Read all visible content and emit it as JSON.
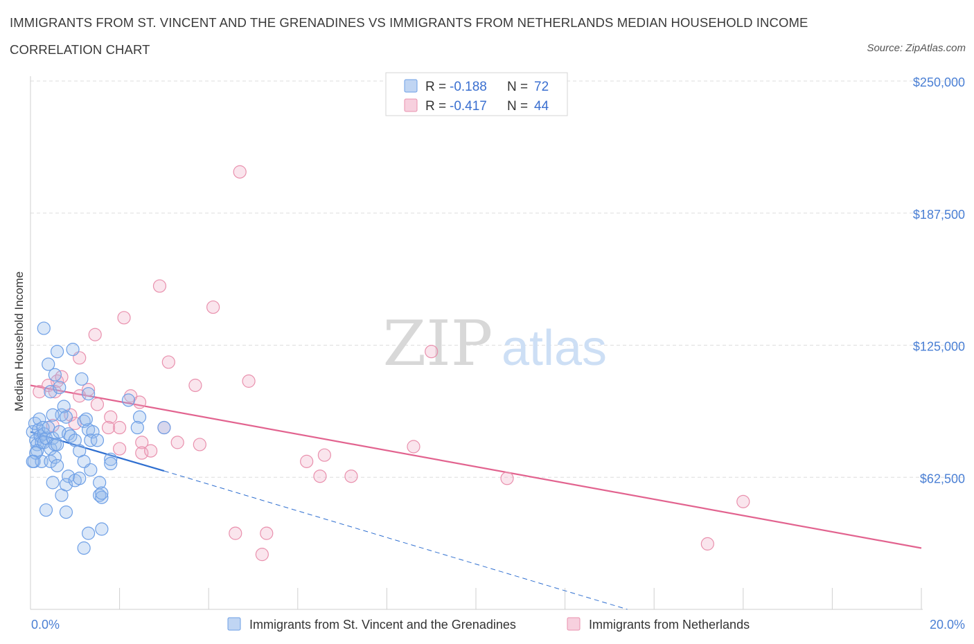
{
  "title_line1": "IMMIGRANTS FROM ST. VINCENT AND THE GRENADINES VS IMMIGRANTS FROM NETHERLANDS MEDIAN HOUSEHOLD INCOME",
  "title_line2": "CORRELATION CHART",
  "source": "Source: ZipAtlas.com",
  "watermark": {
    "zip": "ZIP",
    "atlas": "atlas"
  },
  "colors": {
    "blue": "#6d9fe6",
    "blue_fill": "rgba(150,185,235,0.35)",
    "blue_line": "#2f6fd0",
    "pink": "#e990ad",
    "pink_fill": "rgba(240,170,195,0.30)",
    "pink_line": "#e2638f",
    "grid": "#dddddd",
    "tick_text": "#4a7fd4"
  },
  "legend": {
    "r_label": "R =",
    "n_label": "N =",
    "rows": [
      {
        "r": "-0.188",
        "n": "72"
      },
      {
        "r": "-0.417",
        "n": "44"
      }
    ]
  },
  "chart_data": {
    "type": "scatter",
    "ylabel": "Median Household Income",
    "x_tick_labels": [
      "0.0%",
      "20.0%"
    ],
    "y_tick_labels": [
      "$62,500",
      "$125,000",
      "$187,500",
      "$250,000"
    ],
    "xlim": [
      0,
      20
    ],
    "ylim": [
      0,
      250000
    ],
    "y_ticks": [
      62500,
      125000,
      187500,
      250000
    ],
    "grid": true,
    "legend_position": "top-center",
    "series": [
      {
        "name": "Immigrants from St. Vincent and the Grenadines",
        "color": "#6d9fe6",
        "trend": {
          "x0": 0,
          "y0": 84000,
          "x1": 3.0,
          "y1": 65500,
          "dash_to_x": 13.4,
          "dash_to_y": 0
        },
        "points": [
          [
            0.05,
            84000
          ],
          [
            0.1,
            88000
          ],
          [
            0.12,
            80000
          ],
          [
            0.15,
            78000
          ],
          [
            0.18,
            85000
          ],
          [
            0.2,
            90000
          ],
          [
            0.22,
            82000
          ],
          [
            0.25,
            79000
          ],
          [
            0.28,
            86000
          ],
          [
            0.3,
            83000
          ],
          [
            0.08,
            70000
          ],
          [
            0.15,
            75000
          ],
          [
            0.3,
            79000
          ],
          [
            0.35,
            81000
          ],
          [
            0.4,
            86000
          ],
          [
            0.45,
            76000
          ],
          [
            0.5,
            81000
          ],
          [
            0.55,
            78000
          ],
          [
            0.6,
            78000
          ],
          [
            0.65,
            84000
          ],
          [
            0.7,
            92000
          ],
          [
            0.75,
            96000
          ],
          [
            0.8,
            91000
          ],
          [
            0.85,
            83000
          ],
          [
            0.25,
            70000
          ],
          [
            0.45,
            70000
          ],
          [
            0.55,
            72000
          ],
          [
            0.9,
            82000
          ],
          [
            1.0,
            80000
          ],
          [
            1.1,
            75000
          ],
          [
            1.2,
            89000
          ],
          [
            1.3,
            85000
          ],
          [
            0.3,
            133000
          ],
          [
            0.45,
            103000
          ],
          [
            0.5,
            92000
          ],
          [
            0.4,
            116000
          ],
          [
            0.6,
            122000
          ],
          [
            0.55,
            111000
          ],
          [
            0.65,
            105000
          ],
          [
            0.95,
            123000
          ],
          [
            1.15,
            109000
          ],
          [
            1.3,
            102000
          ],
          [
            1.25,
            90000
          ],
          [
            1.4,
            84000
          ],
          [
            1.35,
            80000
          ],
          [
            0.85,
            63000
          ],
          [
            0.6,
            68000
          ],
          [
            0.5,
            60000
          ],
          [
            0.7,
            54000
          ],
          [
            0.8,
            59000
          ],
          [
            1.0,
            61000
          ],
          [
            1.1,
            62000
          ],
          [
            1.35,
            66000
          ],
          [
            1.55,
            54000
          ],
          [
            1.6,
            53000
          ],
          [
            1.55,
            60000
          ],
          [
            1.6,
            55000
          ],
          [
            1.8,
            71000
          ],
          [
            1.8,
            69000
          ],
          [
            2.2,
            99000
          ],
          [
            2.45,
            91000
          ],
          [
            3.0,
            86000
          ],
          [
            2.4,
            86000
          ],
          [
            1.2,
            70000
          ],
          [
            0.35,
            47000
          ],
          [
            0.8,
            46000
          ],
          [
            1.3,
            36000
          ],
          [
            1.6,
            38000
          ],
          [
            1.2,
            29000
          ],
          [
            1.5,
            80000
          ],
          [
            0.12,
            74000
          ],
          [
            0.05,
            70000
          ]
        ]
      },
      {
        "name": "Immigrants from Netherlands",
        "color": "#e990ad",
        "trend": {
          "x0": 0,
          "y0": 106000,
          "x1": 20,
          "y1": 29000
        },
        "points": [
          [
            4.7,
            207000
          ],
          [
            2.9,
            153000
          ],
          [
            4.1,
            143000
          ],
          [
            2.1,
            138000
          ],
          [
            1.45,
            130000
          ],
          [
            3.1,
            117000
          ],
          [
            1.1,
            119000
          ],
          [
            0.6,
            108000
          ],
          [
            0.4,
            106000
          ],
          [
            0.55,
            103000
          ],
          [
            0.7,
            110000
          ],
          [
            1.3,
            104000
          ],
          [
            1.1,
            101000
          ],
          [
            1.5,
            97000
          ],
          [
            1.8,
            91000
          ],
          [
            2.25,
            101000
          ],
          [
            2.45,
            98000
          ],
          [
            3.7,
            106000
          ],
          [
            4.9,
            108000
          ],
          [
            9.0,
            122000
          ],
          [
            0.9,
            92000
          ],
          [
            1.0,
            88000
          ],
          [
            1.75,
            86000
          ],
          [
            2.0,
            86000
          ],
          [
            2.5,
            79000
          ],
          [
            3.0,
            86000
          ],
          [
            3.3,
            79000
          ],
          [
            3.8,
            78000
          ],
          [
            2.0,
            76000
          ],
          [
            2.5,
            74000
          ],
          [
            2.7,
            75000
          ],
          [
            6.2,
            70000
          ],
          [
            6.6,
            73000
          ],
          [
            6.5,
            63000
          ],
          [
            7.2,
            63000
          ],
          [
            8.6,
            77000
          ],
          [
            10.7,
            62000
          ],
          [
            16.0,
            51000
          ],
          [
            4.6,
            36000
          ],
          [
            5.3,
            36000
          ],
          [
            5.2,
            26000
          ],
          [
            15.2,
            31000
          ],
          [
            0.2,
            103000
          ],
          [
            0.5,
            87000
          ]
        ]
      }
    ]
  }
}
